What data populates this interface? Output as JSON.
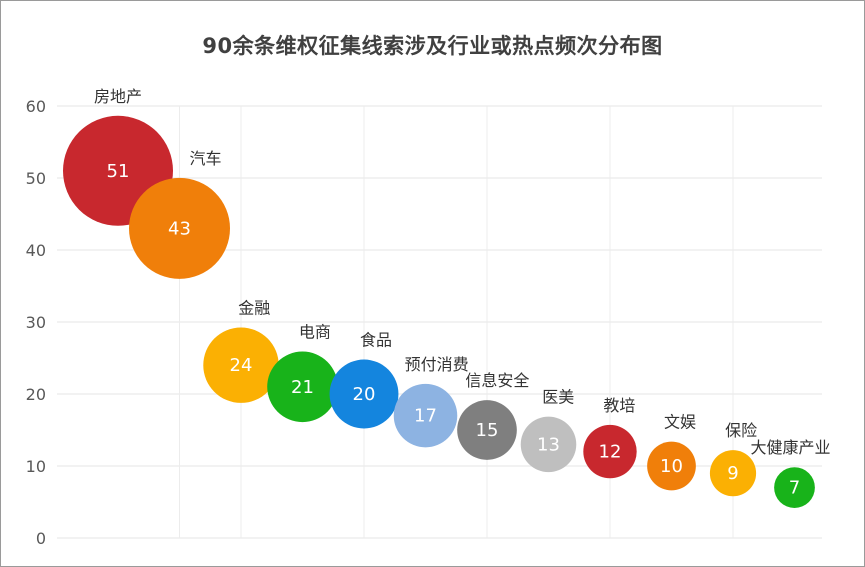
{
  "chart_data": {
    "type": "scatter",
    "title": "90余条维权征集线索涉及行业或热点频次分布图",
    "xlabel": "",
    "ylabel": "",
    "ylim": [
      0,
      60
    ],
    "yticks": [
      0,
      10,
      20,
      30,
      40,
      50,
      60
    ],
    "grid": true,
    "legend": "none",
    "points": [
      {
        "label": "房地产",
        "x": 1,
        "y": 51,
        "value": "51",
        "color": "#C8282E"
      },
      {
        "label": "汽车",
        "x": 2,
        "y": 43,
        "value": "43",
        "color": "#F07F0A"
      },
      {
        "label": "金融",
        "x": 3,
        "y": 24,
        "value": "24",
        "color": "#FBB003"
      },
      {
        "label": "电商",
        "x": 4,
        "y": 21,
        "value": "21",
        "color": "#18B31A"
      },
      {
        "label": "食品",
        "x": 5,
        "y": 20,
        "value": "20",
        "color": "#1485DE"
      },
      {
        "label": "预付消费",
        "x": 6,
        "y": 17,
        "value": "17",
        "color": "#8DB3E2"
      },
      {
        "label": "信息安全",
        "x": 7,
        "y": 15,
        "value": "15",
        "color": "#7F7F7F"
      },
      {
        "label": "医美",
        "x": 8,
        "y": 13,
        "value": "13",
        "color": "#BFBFBF"
      },
      {
        "label": "教培",
        "x": 9,
        "y": 12,
        "value": "12",
        "color": "#C8282E"
      },
      {
        "label": "文娱",
        "x": 10,
        "y": 10,
        "value": "10",
        "color": "#F07F0A"
      },
      {
        "label": "保险",
        "x": 11,
        "y": 9,
        "value": "9",
        "color": "#FBB003"
      },
      {
        "label": "大健康产业",
        "x": 12,
        "y": 7,
        "value": "7",
        "color": "#18B31A"
      }
    ]
  }
}
